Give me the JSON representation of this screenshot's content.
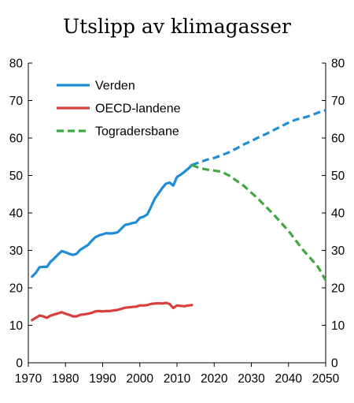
{
  "chart_data": {
    "type": "line",
    "title": "Utslipp av klimagasser",
    "xlabel": "",
    "ylabel": "",
    "xlim": [
      1970,
      2050
    ],
    "ylim": [
      0,
      80
    ],
    "x_ticks": [
      1970,
      1980,
      1990,
      2000,
      2010,
      2020,
      2030,
      2040,
      2050
    ],
    "y_ticks": [
      0,
      10,
      20,
      30,
      40,
      50,
      60,
      70,
      80
    ],
    "axes": [
      "left",
      "right"
    ],
    "grid": false,
    "legend": "top-left",
    "series": [
      {
        "name": "Verden",
        "color": "#1f8dd6",
        "style": "solid",
        "x": [
          1971,
          1972,
          1973,
          1974,
          1975,
          1976,
          1977,
          1978,
          1979,
          1980,
          1981,
          1982,
          1983,
          1984,
          1985,
          1986,
          1987,
          1988,
          1989,
          1990,
          1991,
          1992,
          1993,
          1994,
          1995,
          1996,
          1997,
          1998,
          1999,
          2000,
          2001,
          2002,
          2003,
          2004,
          2005,
          2006,
          2007,
          2008,
          2009,
          2010,
          2011,
          2012,
          2013,
          2014
        ],
        "values": [
          23.0,
          24.0,
          25.5,
          25.6,
          25.6,
          27.0,
          27.9,
          28.9,
          29.8,
          29.5,
          29.1,
          28.8,
          29.1,
          30.2,
          30.8,
          31.4,
          32.5,
          33.5,
          34.0,
          34.3,
          34.6,
          34.5,
          34.6,
          34.8,
          35.8,
          36.8,
          37.0,
          37.3,
          37.5,
          38.7,
          39.0,
          39.6,
          41.6,
          43.8,
          45.2,
          46.6,
          47.8,
          48.1,
          47.3,
          49.6,
          50.2,
          51.0,
          51.8,
          52.8
        ]
      },
      {
        "name": "",
        "color": "#1f8dd6",
        "style": "dashed",
        "x": [
          2014,
          2016,
          2018,
          2020,
          2022,
          2024,
          2026,
          2028,
          2030,
          2032,
          2034,
          2036,
          2038,
          2040,
          2042,
          2044,
          2046,
          2048,
          2050
        ],
        "values": [
          52.8,
          53.5,
          54.2,
          54.7,
          55.4,
          56.2,
          57.2,
          58.3,
          59.2,
          60.2,
          61.1,
          62.1,
          63.1,
          64.1,
          64.9,
          65.4,
          66.0,
          66.8,
          67.4
        ]
      },
      {
        "name": "OECD-landene",
        "color": "#d9403d",
        "style": "solid",
        "x": [
          1971,
          1972,
          1973,
          1974,
          1975,
          1976,
          1977,
          1978,
          1979,
          1980,
          1981,
          1982,
          1983,
          1984,
          1985,
          1986,
          1987,
          1988,
          1989,
          1990,
          1991,
          1992,
          1993,
          1994,
          1995,
          1996,
          1997,
          1998,
          1999,
          2000,
          2001,
          2002,
          2003,
          2004,
          2005,
          2006,
          2007,
          2008,
          2009,
          2010,
          2011,
          2012,
          2013,
          2014
        ],
        "values": [
          11.4,
          12.0,
          12.6,
          12.4,
          12.0,
          12.6,
          12.9,
          13.2,
          13.5,
          13.1,
          12.8,
          12.4,
          12.4,
          12.8,
          12.9,
          13.1,
          13.3,
          13.7,
          13.8,
          13.7,
          13.8,
          13.8,
          14.0,
          14.1,
          14.4,
          14.7,
          14.8,
          14.9,
          15.0,
          15.3,
          15.3,
          15.4,
          15.7,
          15.8,
          15.9,
          15.8,
          16.0,
          15.7,
          14.6,
          15.3,
          15.2,
          15.1,
          15.3,
          15.4
        ]
      },
      {
        "name": "Togradersbane",
        "color": "#3fa842",
        "style": "dashed",
        "x": [
          2014,
          2016,
          2018,
          2020,
          2022,
          2024,
          2026,
          2028,
          2030,
          2032,
          2034,
          2036,
          2038,
          2040,
          2042,
          2044,
          2046,
          2048,
          2050
        ],
        "values": [
          52.8,
          52.0,
          51.6,
          51.3,
          51.0,
          50.0,
          48.6,
          47.2,
          45.4,
          43.6,
          41.6,
          39.6,
          37.4,
          35.2,
          32.6,
          30.0,
          27.8,
          25.5,
          22.0
        ]
      }
    ]
  }
}
